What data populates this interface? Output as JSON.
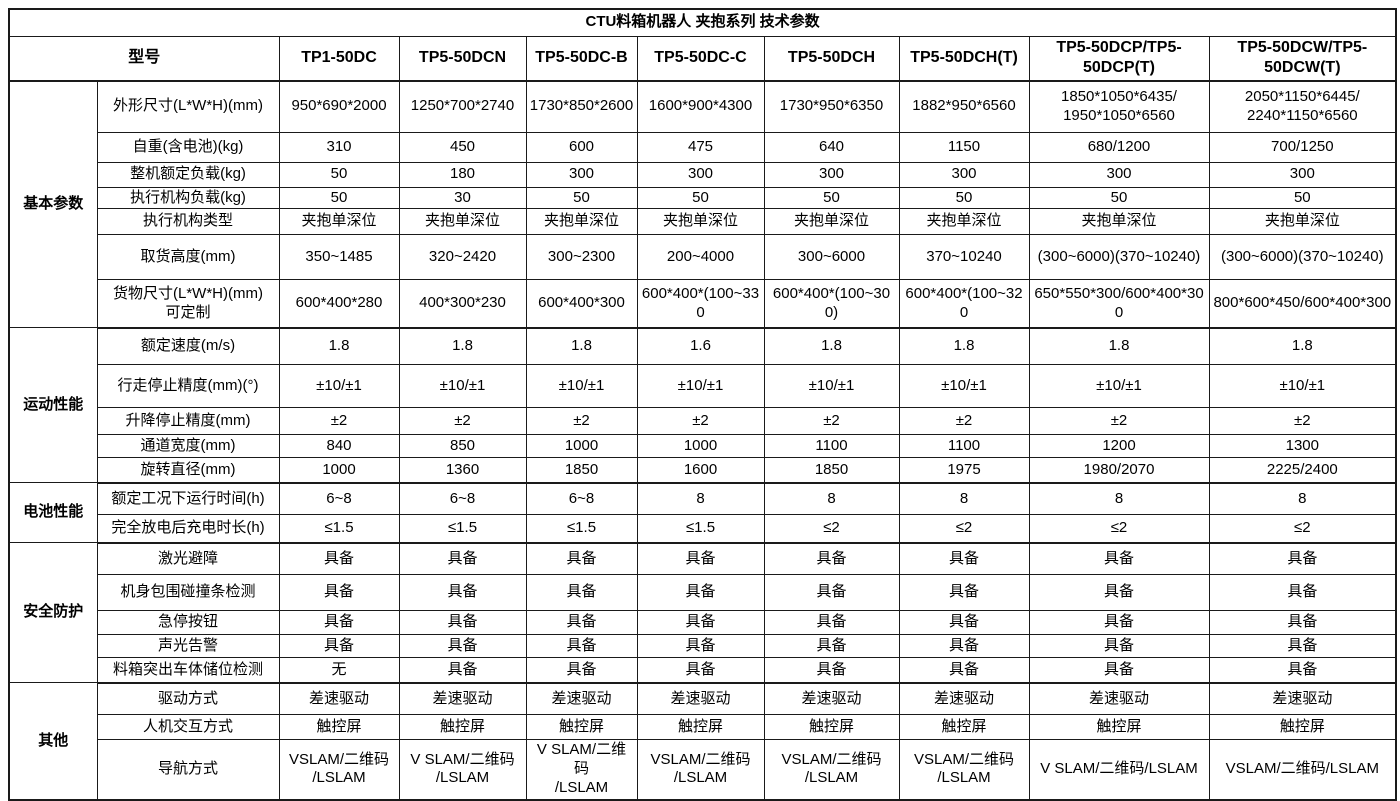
{
  "title": "CTU料箱机器人 夹抱系列 技术参数",
  "model_header_label": "型号",
  "models": [
    "TP1-50DC",
    "TP5-50DCN",
    "TP5-50DC-B",
    "TP5-50DC-C",
    "TP5-50DCH",
    "TP5-50DCH(T)",
    "TP5-50DCP/TP5-\n50DCP(T)",
    "TP5-50DCW/TP5-\n50DCW(T)"
  ],
  "sections": [
    {
      "name": "基本参数",
      "rows": [
        {
          "param": "外形尺寸(L*W*H)(mm)",
          "values": [
            "950*690*2000",
            "1250*700*2740",
            "1730*850*2600",
            "1600*900*4300",
            "1730*950*6350",
            "1882*950*6560",
            "1850*1050*6435/\n1950*1050*6560",
            "2050*1150*6445/\n2240*1150*6560"
          ]
        },
        {
          "param": "自重(含电池)(kg)",
          "values": [
            "310",
            "450",
            "600",
            "475",
            "640",
            "1150",
            "680/1200",
            "700/1250"
          ]
        },
        {
          "param": "整机额定负载(kg)",
          "values": [
            "50",
            "180",
            "300",
            "300",
            "300",
            "300",
            "300",
            "300"
          ]
        },
        {
          "param": "执行机构负载(kg)",
          "values": [
            "50",
            "30",
            "50",
            "50",
            "50",
            "50",
            "50",
            "50"
          ]
        },
        {
          "param": "执行机构类型",
          "values": [
            "夹抱单深位",
            "夹抱单深位",
            "夹抱单深位",
            "夹抱单深位",
            "夹抱单深位",
            "夹抱单深位",
            "夹抱单深位",
            "夹抱单深位"
          ]
        },
        {
          "param": "取货高度(mm)",
          "values": [
            "350~1485",
            "320~2420",
            "300~2300",
            "200~4000",
            "300~6000",
            "370~10240",
            "(300~6000)(370~10240)",
            "(300~6000)(370~10240)"
          ]
        },
        {
          "param": "货物尺寸(L*W*H)(mm)\n可定制",
          "values": [
            "600*400*280",
            "400*300*230",
            "600*400*300",
            "600*400*(100~330",
            "600*400*(100~300)",
            "600*400*(100~320",
            "650*550*300/600*400*300",
            "800*600*450/600*400*300"
          ]
        }
      ]
    },
    {
      "name": "运动性能",
      "rows": [
        {
          "param": "额定速度(m/s)",
          "values": [
            "1.8",
            "1.8",
            "1.8",
            "1.6",
            "1.8",
            "1.8",
            "1.8",
            "1.8"
          ]
        },
        {
          "param": "行走停止精度(mm)(°)",
          "values": [
            "±10/±1",
            "±10/±1",
            "±10/±1",
            "±10/±1",
            "±10/±1",
            "±10/±1",
            "±10/±1",
            "±10/±1"
          ]
        },
        {
          "param": "升降停止精度(mm)",
          "values": [
            "±2",
            "±2",
            "±2",
            "±2",
            "±2",
            "±2",
            "±2",
            "±2"
          ]
        },
        {
          "param": "通道宽度(mm)",
          "values": [
            "840",
            "850",
            "1000",
            "1000",
            "1100",
            "1100",
            "1200",
            "1300"
          ]
        },
        {
          "param": "旋转直径(mm)",
          "values": [
            "1000",
            "1360",
            "1850",
            "1600",
            "1850",
            "1975",
            "1980/2070",
            "2225/2400"
          ]
        }
      ]
    },
    {
      "name": "电池性能",
      "rows": [
        {
          "param": "额定工况下运行时间(h)",
          "values": [
            "6~8",
            "6~8",
            "6~8",
            "8",
            "8",
            "8",
            "8",
            "8"
          ]
        },
        {
          "param": "完全放电后充电时长(h)",
          "values": [
            "≤1.5",
            "≤1.5",
            "≤1.5",
            "≤1.5",
            "≤2",
            "≤2",
            "≤2",
            "≤2"
          ]
        }
      ]
    },
    {
      "name": "安全防护",
      "rows": [
        {
          "param": "激光避障",
          "values": [
            "具备",
            "具备",
            "具备",
            "具备",
            "具备",
            "具备",
            "具备",
            "具备"
          ]
        },
        {
          "param": "机身包围碰撞条检测",
          "values": [
            "具备",
            "具备",
            "具备",
            "具备",
            "具备",
            "具备",
            "具备",
            "具备"
          ]
        },
        {
          "param": "急停按钮",
          "values": [
            "具备",
            "具备",
            "具备",
            "具备",
            "具备",
            "具备",
            "具备",
            "具备"
          ]
        },
        {
          "param": "声光告警",
          "values": [
            "具备",
            "具备",
            "具备",
            "具备",
            "具备",
            "具备",
            "具备",
            "具备"
          ]
        },
        {
          "param": "料箱突出车体储位检测",
          "values": [
            "无",
            "具备",
            "具备",
            "具备",
            "具备",
            "具备",
            "具备",
            "具备"
          ]
        }
      ]
    },
    {
      "name": "其他",
      "rows": [
        {
          "param": "驱动方式",
          "values": [
            "差速驱动",
            "差速驱动",
            "差速驱动",
            "差速驱动",
            "差速驱动",
            "差速驱动",
            "差速驱动",
            "差速驱动"
          ]
        },
        {
          "param": "人机交互方式",
          "values": [
            "触控屏",
            "触控屏",
            "触控屏",
            "触控屏",
            "触控屏",
            "触控屏",
            "触控屏",
            "触控屏"
          ]
        },
        {
          "param": "导航方式",
          "values": [
            "VSLAM/二维码\n/LSLAM",
            "V SLAM/二维码\n/LSLAM",
            "V SLAM/二维码\n/LSLAM",
            "VSLAM/二维码\n/LSLAM",
            "VSLAM/二维码\n/LSLAM",
            "VSLAM/二维码\n/LSLAM",
            "V SLAM/二维码/LSLAM",
            "VSLAM/二维码/LSLAM"
          ]
        }
      ]
    }
  ],
  "colors": {
    "border": "#1a1a1a",
    "text": "#000000",
    "background": "#ffffff"
  }
}
